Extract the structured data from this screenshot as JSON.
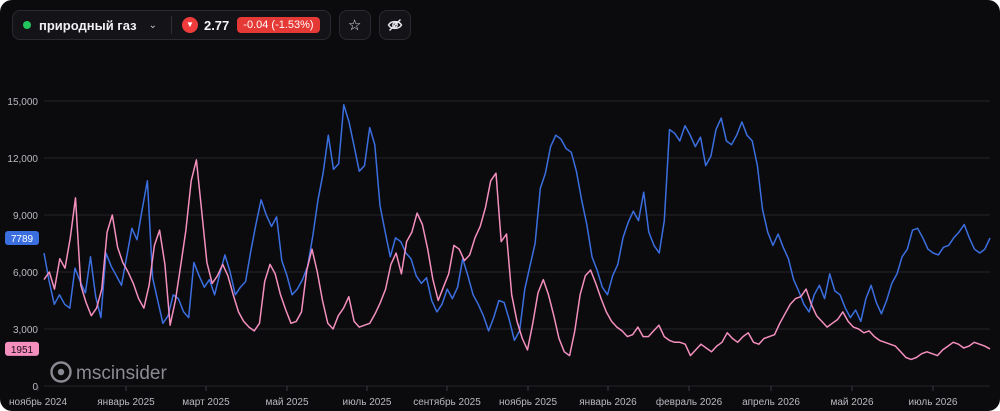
{
  "toolbar": {
    "asset_name": "природный газ",
    "price": "2.77",
    "change": "-0.04 (-1.53%)",
    "status_color": "#22c55e",
    "change_color": "#e53935",
    "favorite_icon": "star-icon",
    "visibility_icon": "eye-off-icon"
  },
  "watermark": {
    "text": "mscinsider"
  },
  "chart_data": {
    "type": "line",
    "y_ticks": [
      "0",
      "3,000",
      "6,000",
      "9,000",
      "12,000",
      "15,000"
    ],
    "x_ticks": [
      "ноябрь 2024",
      "январь 2025",
      "март 2025",
      "май 2025",
      "июль 2025",
      "сентябрь 2025",
      "ноябрь 2025",
      "январь 2026",
      "февраль 2026",
      "апрель 2026",
      "май 2026",
      "июль 2026"
    ],
    "ylim": [
      0,
      17000
    ],
    "grid": true,
    "series": [
      {
        "color": "#3b6fe0",
        "last_label": "7789",
        "values": [
          7000,
          5500,
          4300,
          4800,
          4300,
          4100,
          6200,
          5500,
          4900,
          6800,
          4700,
          3600,
          7000,
          6300,
          5800,
          5300,
          6800,
          8300,
          7700,
          9300,
          10800,
          5700,
          4500,
          3300,
          3700,
          4800,
          4600,
          3900,
          3600,
          6500,
          5800,
          5200,
          5600,
          4800,
          5900,
          6900,
          6000,
          4800,
          5200,
          5500,
          7100,
          8500,
          9800,
          9000,
          8400,
          8900,
          6600,
          5800,
          4800,
          5100,
          5600,
          6300,
          7900,
          9800,
          11200,
          13200,
          11400,
          11700,
          14800,
          13900,
          12600,
          11300,
          11600,
          13600,
          12700,
          9500,
          8100,
          6800,
          7800,
          7600,
          7000,
          6700,
          5800,
          5400,
          5700,
          4500,
          3900,
          4300,
          5100,
          4600,
          5200,
          6700,
          5800,
          4800,
          4300,
          3700,
          2900,
          3600,
          4500,
          4400,
          3500,
          2400,
          2900,
          5100,
          6300,
          7500,
          10400,
          11200,
          12600,
          13200,
          13000,
          12500,
          12300,
          11300,
          9800,
          8500,
          6800,
          6100,
          5200,
          4800,
          5800,
          6400,
          7800,
          8600,
          9200,
          8700,
          10200,
          8100,
          7400,
          7000,
          8700,
          13500,
          13300,
          12900,
          13700,
          13200,
          12600,
          13100,
          11600,
          12100,
          13500,
          14100,
          12900,
          12700,
          13200,
          13900,
          13200,
          12900,
          11600,
          9300,
          8100,
          7400,
          8000,
          7300,
          6700,
          5600,
          5000,
          4300,
          3900,
          4800,
          5300,
          4600,
          5900,
          5000,
          4800,
          4100,
          3600,
          4000,
          3400,
          4600,
          5300,
          4400,
          3800,
          4500,
          5400,
          5900,
          6800,
          7200,
          8200,
          8300,
          7800,
          7200,
          7000,
          6900,
          7300,
          7400,
          7800,
          8100,
          8500,
          7800,
          7200,
          7000,
          7200,
          7789
        ]
      },
      {
        "color": "#f48fbe",
        "last_label": "1951",
        "values": [
          5600,
          6000,
          5100,
          6700,
          6200,
          7800,
          9900,
          5300,
          4400,
          3700,
          4100,
          5100,
          8100,
          9000,
          7300,
          6500,
          6000,
          5400,
          4600,
          4100,
          5300,
          7400,
          8200,
          6400,
          3200,
          4500,
          6300,
          8200,
          10800,
          11900,
          9200,
          6500,
          5400,
          5800,
          6400,
          5800,
          4800,
          3900,
          3400,
          3100,
          2900,
          3300,
          5500,
          6400,
          5900,
          4800,
          4000,
          3300,
          3400,
          3900,
          6100,
          7200,
          6000,
          4500,
          3300,
          3000,
          3700,
          4100,
          4700,
          3400,
          3100,
          3200,
          3300,
          3800,
          4400,
          5100,
          6400,
          7000,
          5900,
          7600,
          8100,
          9100,
          8500,
          7200,
          5600,
          4500,
          5200,
          5900,
          7400,
          7200,
          6600,
          6900,
          7800,
          8400,
          9400,
          10800,
          11200,
          7600,
          8000,
          4800,
          3400,
          2500,
          1900,
          3300,
          4900,
          5600,
          4800,
          3700,
          2500,
          1800,
          1600,
          2900,
          4800,
          5800,
          6100,
          5400,
          4600,
          3900,
          3400,
          3100,
          2900,
          2600,
          2700,
          3100,
          2600,
          2600,
          2900,
          3200,
          2600,
          2400,
          2300,
          2300,
          2200,
          1600,
          1900,
          2200,
          2000,
          1800,
          2100,
          2300,
          2800,
          2500,
          2300,
          2600,
          2800,
          2300,
          2200,
          2500,
          2600,
          2700,
          3300,
          3800,
          4300,
          4600,
          4700,
          5100,
          4300,
          3700,
          3400,
          3100,
          3300,
          3500,
          3900,
          3400,
          3100,
          3000,
          2800,
          2900,
          2600,
          2400,
          2300,
          2200,
          2100,
          1800,
          1500,
          1400,
          1500,
          1700,
          1800,
          1700,
          1600,
          1900,
          2100,
          2300,
          2200,
          2000,
          2100,
          2300,
          2200,
          2100,
          1951
        ]
      }
    ]
  }
}
